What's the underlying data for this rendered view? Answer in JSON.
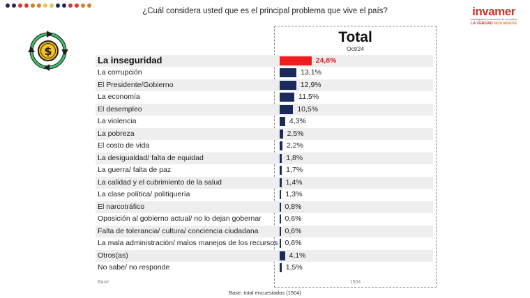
{
  "header": {
    "question": "¿Cuál considera usted que es el principal problema que vive el país?",
    "dot_colors": [
      "#1e2a5e",
      "#1e2a5e",
      "#d63a2f",
      "#d63a2f",
      "#e07b28",
      "#e07b28",
      "#f2c14e",
      "#f2c14e",
      "#1e2a5e",
      "#1e2a5e",
      "#d63a2f",
      "#d63a2f",
      "#e07b28",
      "#e07b28"
    ]
  },
  "logo": {
    "brand": "invamer",
    "sub": "Investigación y asesoría de mercados",
    "tag_a": "LA VERDAD",
    "tag_b": "NOS MUEVE",
    "icon": "money-cycle-icon"
  },
  "colors": {
    "highlight": "#ee1c1c",
    "bar": "#1b2a5c",
    "panel_border": "#8a8a8a"
  },
  "chart_data": {
    "type": "bar",
    "orientation": "horizontal",
    "title": "Total",
    "subtitle": "Oct/24",
    "categories": [
      "La inseguridad",
      "La corrupción",
      "El Presidente/Gobierno",
      "La economía",
      "El desempleo",
      "La violencia",
      "La pobreza",
      "El costo de vida",
      "La desigualdad/ falta de equidad",
      "La guerra/ falta de paz",
      "La calidad y el cubrimiento de la salud",
      "La clase política/ politiquería",
      "El narcotráfico",
      "Oposición al gobierno actual/ no lo dejan gobernar",
      "Falta de tolerancia/ cultura/ conciencia ciudadana",
      "La mala administración/ malos manejos de los recursos",
      "Otros(as)",
      "No sabe/ no responde"
    ],
    "values": [
      24.8,
      13.1,
      12.9,
      11.5,
      10.5,
      4.3,
      2.5,
      2.2,
      1.8,
      1.7,
      1.4,
      1.3,
      0.8,
      0.6,
      0.6,
      0.6,
      4.1,
      1.5
    ],
    "labels": [
      "24,8%",
      "13,1%",
      "12,9%",
      "11,5%",
      "10,5%",
      "4,3%",
      "2,5%",
      "2,2%",
      "1,8%",
      "1,7%",
      "1,4%",
      "1,3%",
      "0,8%",
      "0,6%",
      "0,6%",
      "0,6%",
      "4,1%",
      "1,5%"
    ],
    "unit": "%",
    "base_label": "Base:",
    "base_value": "1504"
  },
  "footer": {
    "note": "Base: total encuestados (1504)"
  }
}
